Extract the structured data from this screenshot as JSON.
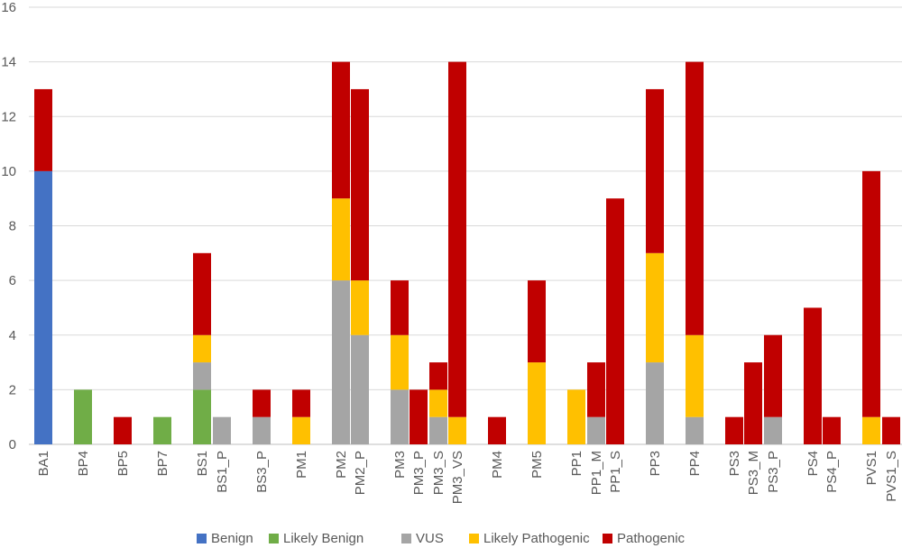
{
  "chart_data": {
    "type": "bar",
    "stacked": true,
    "categories": [
      "BA1",
      "BP4",
      "BP5",
      "BP7",
      "BS1",
      "BS1_P",
      "BS3_P",
      "PM1",
      "PM2",
      "PM2_P",
      "PM3",
      "PM3_P",
      "PM3_S",
      "PM3_VS",
      "PM4",
      "PM5",
      "PP1",
      "PP1_M",
      "PP1_S",
      "PP3",
      "PP4",
      "PS3",
      "PS3_M",
      "PS3_P",
      "PS4",
      "PS4_P",
      "PVS1",
      "PVS1_S"
    ],
    "series": [
      {
        "name": "Benign",
        "color": "#4472C4",
        "values": [
          10,
          0,
          0,
          0,
          0,
          0,
          0,
          0,
          0,
          0,
          0,
          0,
          0,
          0,
          0,
          0,
          0,
          0,
          0,
          0,
          0,
          0,
          0,
          0,
          0,
          0,
          0,
          0
        ]
      },
      {
        "name": "Likely Benign",
        "color": "#70AD47",
        "values": [
          0,
          2,
          0,
          1,
          2,
          0,
          0,
          0,
          0,
          0,
          0,
          0,
          0,
          0,
          0,
          0,
          0,
          0,
          0,
          0,
          0,
          0,
          0,
          0,
          0,
          0,
          0,
          0
        ]
      },
      {
        "name": "VUS",
        "color": "#A5A5A5",
        "values": [
          0,
          0,
          0,
          0,
          1,
          1,
          1,
          0,
          6,
          4,
          2,
          0,
          1,
          0,
          0,
          0,
          0,
          1,
          0,
          3,
          1,
          0,
          0,
          1,
          0,
          0,
          0,
          0
        ]
      },
      {
        "name": "Likely Pathogenic",
        "color": "#FFC000",
        "values": [
          0,
          0,
          0,
          0,
          1,
          0,
          0,
          1,
          3,
          2,
          2,
          0,
          1,
          1,
          0,
          3,
          2,
          0,
          0,
          4,
          3,
          0,
          0,
          0,
          0,
          0,
          1,
          0
        ]
      },
      {
        "name": "Pathogenic",
        "color": "#C00000",
        "values": [
          3,
          0,
          1,
          0,
          3,
          0,
          1,
          1,
          5,
          7,
          2,
          2,
          1,
          13,
          1,
          3,
          0,
          2,
          9,
          6,
          10,
          1,
          3,
          3,
          5,
          1,
          9,
          1
        ]
      }
    ],
    "ylim": [
      0,
      16
    ],
    "yticks": [
      "0",
      "2",
      "4",
      "6",
      "8",
      "10",
      "12",
      "14",
      "16"
    ],
    "grid": true,
    "legend_position": "bottom"
  }
}
